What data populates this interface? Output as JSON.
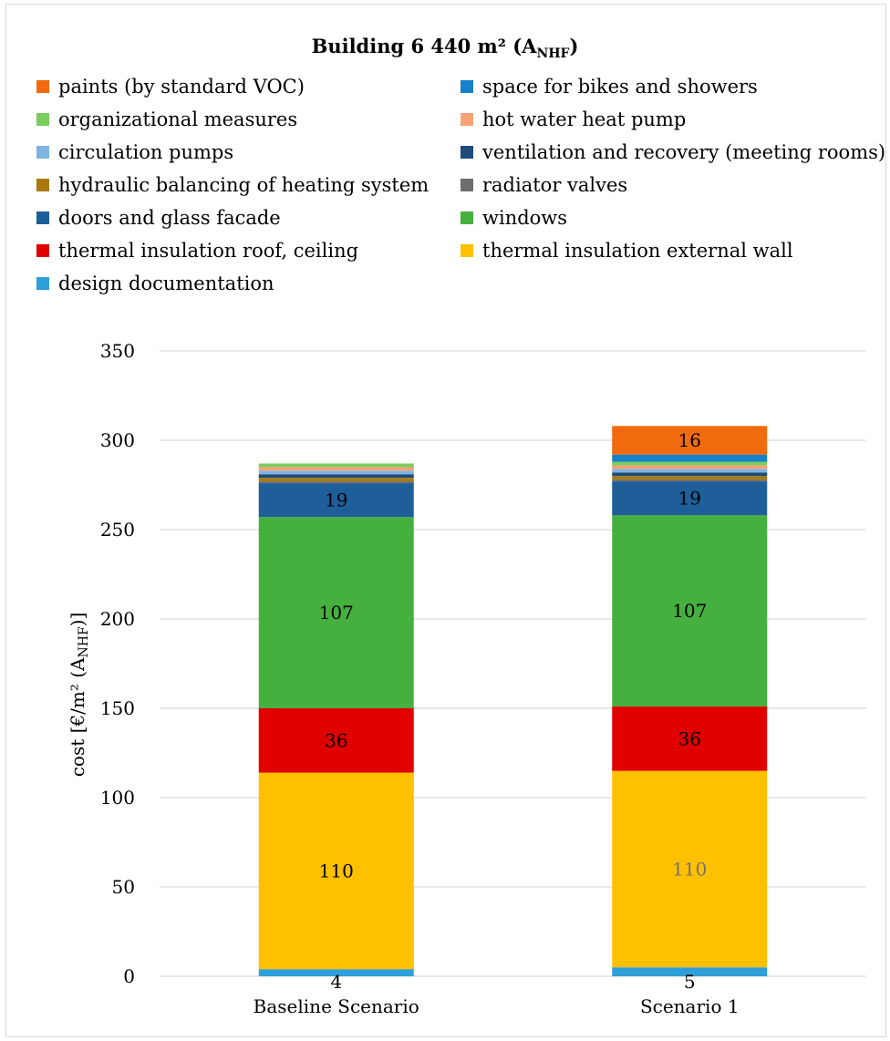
{
  "chart_data": {
    "type": "bar",
    "stacked": true,
    "title": "Building 6 440 m²",
    "title_sub_text": "(A",
    "title_subscript": "NHF",
    "title_sub_close": ")",
    "ylabel_main": "cost [€/m² (A",
    "ylabel_subscript": "NHF",
    "ylabel_close": ")]",
    "categories": [
      "Baseline Scenario",
      "Scenario 1"
    ],
    "ylim": [
      0,
      350
    ],
    "yticks": [
      0,
      50,
      100,
      150,
      200,
      250,
      300,
      350
    ],
    "grid": true,
    "legend_position": "top",
    "series": [
      {
        "name": "design documentation",
        "color": "#2E9FD8",
        "values": [
          4,
          5
        ],
        "labels": [
          "4",
          "5"
        ]
      },
      {
        "name": "thermal insulation external wall",
        "color": "#FFC000",
        "values": [
          110,
          110
        ],
        "labels": [
          "110",
          "110"
        ]
      },
      {
        "name": "thermal insulation roof, ceiling",
        "color": "#E00000",
        "values": [
          36,
          36
        ],
        "labels": [
          "36",
          "36"
        ]
      },
      {
        "name": "windows",
        "color": "#46B03E",
        "values": [
          107,
          107
        ],
        "labels": [
          "107",
          "107"
        ]
      },
      {
        "name": "doors and glass facade",
        "color": "#1F5F99",
        "values": [
          19,
          19
        ],
        "labels": [
          "19",
          "19"
        ]
      },
      {
        "name": "radiator valves",
        "color": "#6E6E6E",
        "values": [
          1,
          1
        ],
        "labels": [
          "",
          ""
        ]
      },
      {
        "name": "hydraulic balancing of heating system",
        "color": "#A87A10",
        "values": [
          2,
          2
        ],
        "labels": [
          "",
          ""
        ]
      },
      {
        "name": "ventilation and recovery (meeting rooms)",
        "color": "#1E4B79",
        "values": [
          2,
          2
        ],
        "labels": [
          "",
          ""
        ]
      },
      {
        "name": "circulation pumps",
        "color": "#7FB5E0",
        "values": [
          2,
          2
        ],
        "labels": [
          "",
          ""
        ]
      },
      {
        "name": "hot water heat pump",
        "color": "#F7A274",
        "values": [
          2,
          2
        ],
        "labels": [
          "",
          ""
        ]
      },
      {
        "name": "organizational measures",
        "color": "#7ACC5F",
        "values": [
          2,
          2
        ],
        "labels": [
          "",
          ""
        ]
      },
      {
        "name": "space for bikes and showers",
        "color": "#1681C9",
        "values": [
          0,
          4
        ],
        "labels": [
          "",
          ""
        ]
      },
      {
        "name": "paints (by standard VOC)",
        "color": "#F26A0E",
        "values": [
          0,
          16
        ],
        "labels": [
          "",
          "16"
        ]
      }
    ],
    "legend_order": [
      12,
      11,
      10,
      9,
      8,
      7,
      6,
      5,
      4,
      3,
      2,
      1,
      0
    ],
    "label_colors": [
      "#000000",
      "#767171"
    ]
  }
}
